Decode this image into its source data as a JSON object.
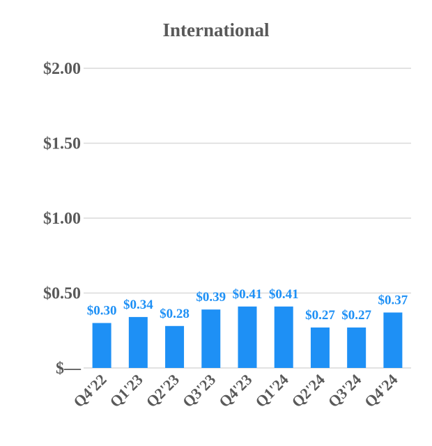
{
  "chart_data": {
    "type": "bar",
    "title": "International",
    "categories": [
      "Q4'22",
      "Q1'23",
      "Q2'23",
      "Q3'23",
      "Q4'23",
      "Q1'24",
      "Q2'24",
      "Q3'24",
      "Q4'24"
    ],
    "values": [
      0.3,
      0.34,
      0.28,
      0.39,
      0.41,
      0.41,
      0.27,
      0.27,
      0.37
    ],
    "data_labels": [
      "$0.30",
      "$0.34",
      "$0.28",
      "$0.39",
      "$0.41",
      "$0.41",
      "$0.27",
      "$0.27",
      "$0.37"
    ],
    "yticks": [
      0,
      0.5,
      1.0,
      1.5,
      2.0
    ],
    "ytick_labels": [
      "$—",
      "$0.50",
      "$1.00",
      "$1.50",
      "$2.00"
    ],
    "ylim": [
      0,
      2.0
    ],
    "grid": true,
    "legend": "none",
    "colors": {
      "bar": "#1e90f5",
      "data_label": "#1e90f5",
      "text": "#595959",
      "grid": "#d9d9d9"
    }
  }
}
